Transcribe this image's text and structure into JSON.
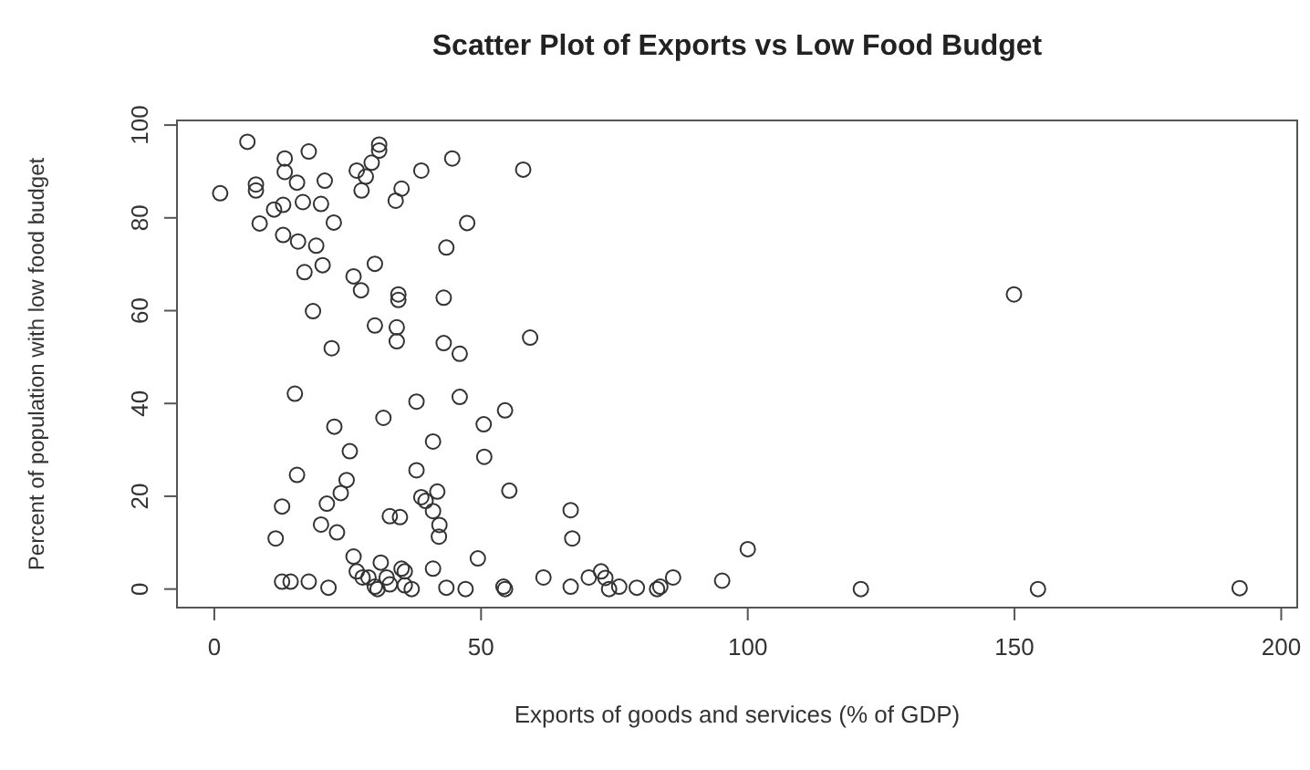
{
  "chart_data": {
    "type": "scatter",
    "title": "Scatter Plot of Exports vs Low Food Budget",
    "xlabel": "Exports of goods and services (% of GDP)",
    "ylabel": "Percent of population with low food budget",
    "xlim": [
      -7,
      203
    ],
    "ylim": [
      -4,
      101
    ],
    "xticks": [
      0,
      50,
      100,
      150,
      200
    ],
    "yticks": [
      0,
      20,
      40,
      60,
      80,
      100
    ],
    "grid": false,
    "marker": "circle",
    "series": [
      {
        "color": "#333333",
        "x": [
          6.2,
          1.1,
          7.8,
          7.8,
          13.2,
          13.2,
          17.7,
          15.5,
          20.7,
          8.5,
          11.2,
          12.9,
          16.6,
          20,
          22.4,
          12.9,
          15.7,
          19.1,
          16.9,
          20.3,
          18.5,
          22,
          15.1,
          22.5,
          26.1,
          27.5,
          30.1,
          30.1,
          26.7,
          27.6,
          28.4,
          29.5,
          30.9,
          30.9,
          34,
          35.1,
          38.8,
          34.5,
          34.5,
          34.2,
          34.2,
          37.9,
          31.7,
          44.6,
          57.9,
          47.4,
          43.5,
          43,
          43,
          46,
          59.2,
          46,
          54.5,
          50.5,
          41,
          50.6,
          37.9,
          55.3,
          41.8,
          38.8,
          39.6,
          41,
          32.9,
          34.8,
          42.2,
          42.1,
          66.8,
          67.1,
          100,
          49.4,
          31.2,
          35.1,
          41,
          30.1,
          32.9,
          37,
          43.5,
          47.1,
          54.2,
          54.5,
          61.7,
          66.8,
          70.2,
          72.5,
          73.3,
          74,
          75.9,
          79.2,
          83,
          83.6,
          86,
          95.2,
          28.9,
          25.4,
          15.5,
          24.8,
          23.7,
          12.7,
          21.1,
          20,
          23,
          11.5,
          12.7,
          14.3,
          17.7,
          21.4,
          26.1,
          26.7,
          27.8,
          32.3,
          35.7,
          30.6,
          35.7,
          149.9,
          121.2,
          154.4,
          192.2
        ],
        "values": [
          96.4,
          85.3,
          87.2,
          85.9,
          92.8,
          89.9,
          94.3,
          87.6,
          88,
          78.8,
          81.8,
          82.8,
          83.4,
          83,
          79,
          76.3,
          74.9,
          74,
          68.3,
          69.8,
          59.9,
          51.9,
          42.1,
          35,
          67.4,
          64.4,
          70.1,
          56.8,
          90.2,
          85.9,
          88.9,
          91.9,
          95.8,
          94.5,
          83.7,
          86.3,
          90.2,
          63.5,
          62.3,
          56.4,
          53.4,
          40.4,
          36.9,
          92.8,
          90.4,
          78.9,
          73.6,
          62.8,
          53,
          50.7,
          54.2,
          41.4,
          38.5,
          35.5,
          31.8,
          28.5,
          25.6,
          21.2,
          21,
          19.8,
          19,
          16.8,
          15.7,
          15.5,
          13.8,
          11.3,
          17,
          10.9,
          8.6,
          6.6,
          5.7,
          4.4,
          4.4,
          0.5,
          1,
          0,
          0.3,
          0,
          0.5,
          0,
          2.5,
          0.5,
          2.5,
          3.8,
          2.4,
          0,
          0.5,
          0.3,
          0,
          0.5,
          2.5,
          1.8,
          2.5,
          29.7,
          24.6,
          23.5,
          20.7,
          17.8,
          18.4,
          13.9,
          12.2,
          10.9,
          1.6,
          1.6,
          1.6,
          0.3,
          7,
          3.8,
          2.5,
          2.5,
          3.8,
          0,
          0.8,
          63.5,
          0,
          0,
          0.2
        ]
      }
    ]
  }
}
